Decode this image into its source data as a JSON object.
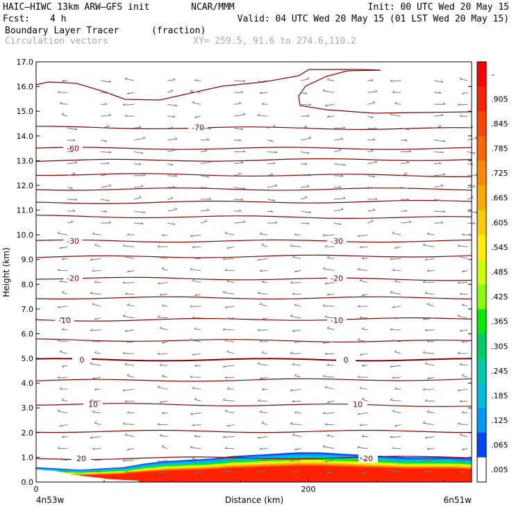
{
  "header": {
    "model_title": "HAIC–HIWC 13km ARW–GFS init",
    "org": "NCAR/MMM",
    "init": "Init: 00 UTC Wed 20 May 15",
    "fcst_label": "Fcst:",
    "fcst_value": "4 h",
    "valid": "Valid: 04 UTC Wed 20 May 15 (01 LST Wed 20 May 15)",
    "field_name": "Boundary Layer Tracer",
    "field_units": "(fraction)",
    "vector_label": "Circulation vectors",
    "xy_label": "XY= 259.5, 91.6 to 274.6,110.2"
  },
  "chart_data": {
    "type": "heatmap",
    "ylabel": "Height (km)",
    "xlabel": "Distance (km)",
    "ylim": [
      0,
      17
    ],
    "xlim": [
      0,
      320
    ],
    "y_ticks": [
      "0.0",
      "1.0",
      "2.0",
      "3.0",
      "4.0",
      "5.0",
      "6.0",
      "7.0",
      "8.0",
      "9.0",
      "10.0",
      "11.0",
      "12.0",
      "13.0",
      "14.0",
      "15.0",
      "16.0",
      "17.0"
    ],
    "x_ticks": [
      {
        "value": 0,
        "label": "0"
      },
      {
        "value": 200,
        "label": "200"
      }
    ],
    "x_endpoints": {
      "left": "4n53w",
      "right": "6n51w"
    },
    "colorbar": {
      "labels": [
        "–",
        ".905",
        ".845",
        ".785",
        ".725",
        ".665",
        ".605",
        ".545",
        ".485",
        ".425",
        ".365",
        ".305",
        ".245",
        ".185",
        ".125",
        ".065",
        ".005"
      ],
      "colors": [
        "#ff0000",
        "#ff2200",
        "#ff4400",
        "#ff6600",
        "#ff8800",
        "#ffaa00",
        "#ffcc00",
        "#ffee00",
        "#ccff00",
        "#88ff00",
        "#00ee00",
        "#00cc66",
        "#00ccaa",
        "#00bbdd",
        "#0099ff",
        "#0044ff",
        "#ffffff"
      ]
    },
    "contours": [
      {
        "label": "-70",
        "height": 14.35
      },
      {
        "label": "-60",
        "height": 13.5
      },
      {
        "label": "-30",
        "height": 9.75
      },
      {
        "label": "-20",
        "height": 8.25
      },
      {
        "label": "-10",
        "height": 6.55
      },
      {
        "label": "0",
        "height": 4.95
      },
      {
        "label": "10",
        "height": 3.15
      },
      {
        "label": "20",
        "height": 0.95
      }
    ],
    "contour_lines_km": [
      0.95,
      2.05,
      3.15,
      4.1,
      4.95,
      5.75,
      6.55,
      7.45,
      8.25,
      9.1,
      9.75,
      10.75,
      11.3,
      11.85,
      12.45,
      13.0,
      13.5,
      14.35
    ],
    "tracer_top_km": [
      0.6,
      0.55,
      0.5,
      0.55,
      0.6,
      0.75,
      0.85,
      0.9,
      0.95,
      1.05,
      1.1,
      1.15,
      1.2,
      1.2,
      1.15,
      1.1,
      1.05,
      1.0,
      1.0,
      1.0,
      0.95
    ],
    "color_accent": "#800000",
    "vector_color": "#777777"
  }
}
